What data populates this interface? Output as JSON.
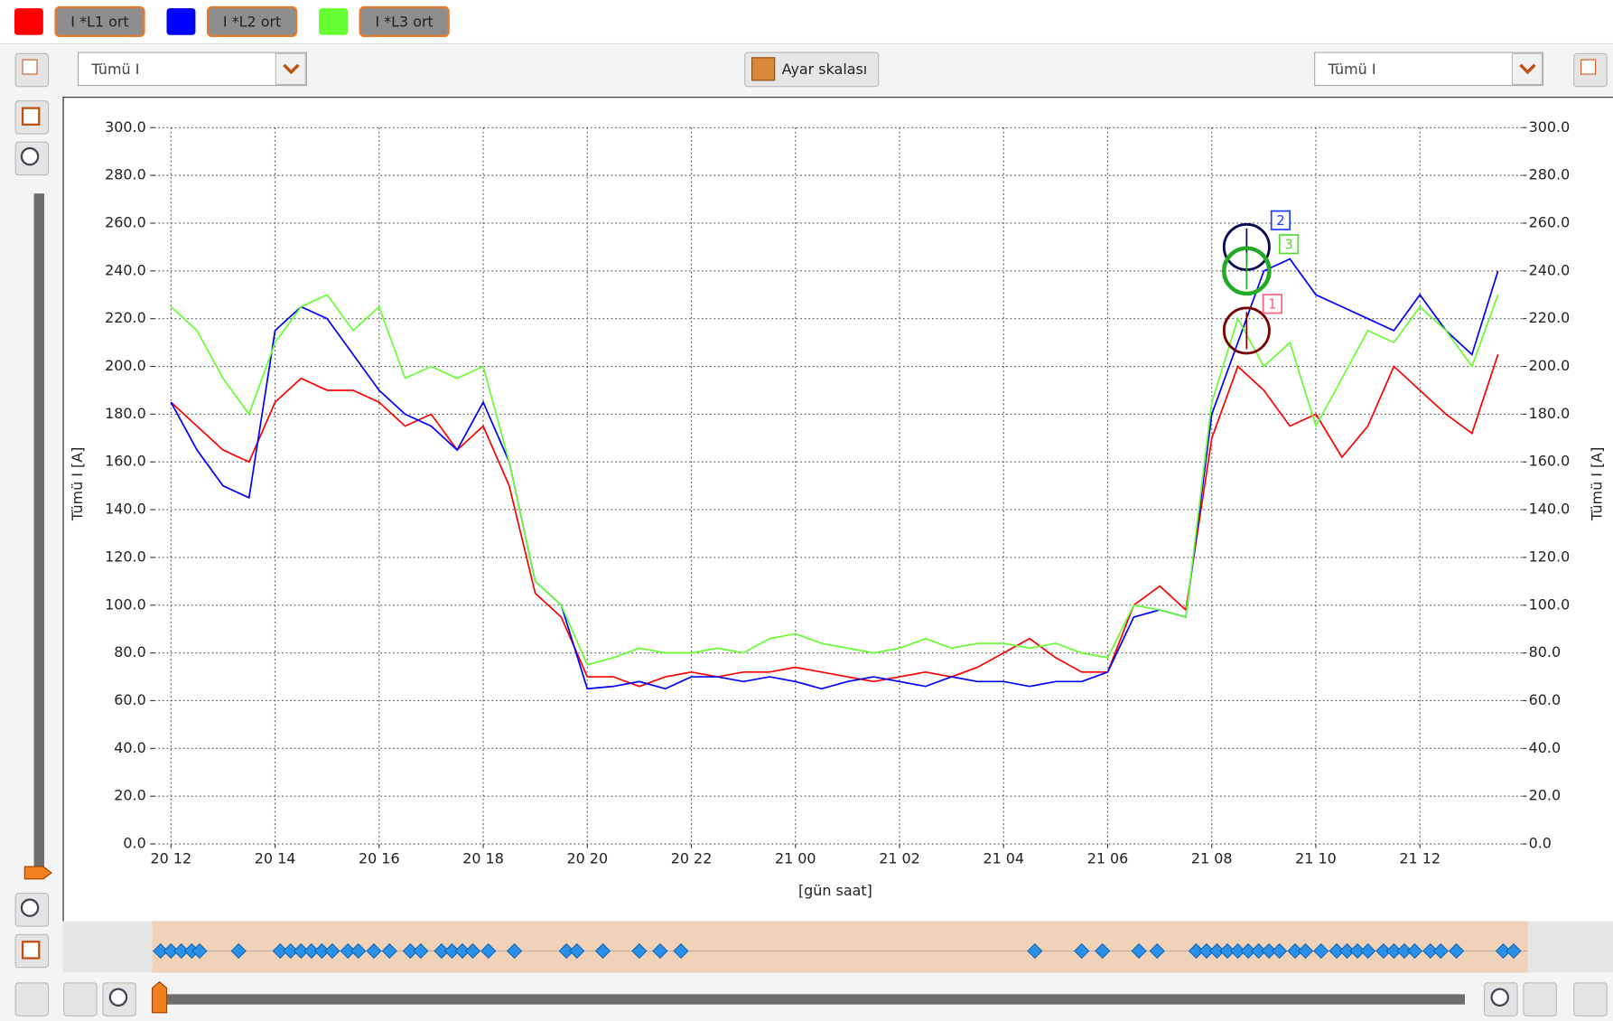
{
  "toolbar": {
    "dropdown_left": "Tümü I",
    "scale_button": "Ayar skalası",
    "dropdown_right": "Tümü I"
  },
  "chart_data": {
    "type": "line",
    "y_label": "Tümü I [A]",
    "y2_label": "Tümü I [A]",
    "x_label": "[gün saat]",
    "xlim": [
      -0.32,
      25.97
    ],
    "xticks": [
      {
        "value": 0,
        "label": "20 12"
      },
      {
        "value": 2,
        "label": "20 14"
      },
      {
        "value": 4,
        "label": "20 16"
      },
      {
        "value": 6,
        "label": "20 18"
      },
      {
        "value": 8,
        "label": "20 20"
      },
      {
        "value": 10,
        "label": "20 22"
      },
      {
        "value": 12,
        "label": "21 00"
      },
      {
        "value": 14,
        "label": "21 02"
      },
      {
        "value": 16,
        "label": "21 04"
      },
      {
        "value": 18,
        "label": "21 06"
      },
      {
        "value": 20,
        "label": "21 08"
      },
      {
        "value": 22,
        "label": "21 10"
      },
      {
        "value": 24,
        "label": "21 12"
      }
    ],
    "ylim": [
      0,
      300
    ],
    "yticks": [
      {
        "value": 0,
        "label": "0.0"
      },
      {
        "value": 20,
        "label": "20.0"
      },
      {
        "value": 40,
        "label": "40.0"
      },
      {
        "value": 60,
        "label": "60.0"
      },
      {
        "value": 80,
        "label": "80.0"
      },
      {
        "value": 100,
        "label": "100.0"
      },
      {
        "value": 120,
        "label": "120.0"
      },
      {
        "value": 140,
        "label": "140.0"
      },
      {
        "value": 160,
        "label": "160.0"
      },
      {
        "value": 180,
        "label": "180.0"
      },
      {
        "value": 200,
        "label": "200.0"
      },
      {
        "value": 220,
        "label": "220.0"
      },
      {
        "value": 240,
        "label": "240.0"
      },
      {
        "value": 260,
        "label": "260.0"
      },
      {
        "value": 280,
        "label": "280.0"
      },
      {
        "value": 300,
        "label": "300.0"
      }
    ],
    "grid": true,
    "x": [
      0,
      0.5,
      1,
      1.5,
      2,
      2.5,
      3,
      3.5,
      4,
      4.5,
      5,
      5.5,
      6,
      6.5,
      7,
      7.5,
      8,
      8.5,
      9,
      9.5,
      10,
      10.5,
      11,
      11.5,
      12,
      12.5,
      13,
      13.5,
      14,
      14.5,
      15,
      15.5,
      16,
      16.5,
      17,
      17.5,
      18,
      18.5,
      19,
      19.5,
      20,
      20.5,
      21,
      21.5,
      22,
      22.5,
      23,
      23.5,
      24,
      24.5,
      25,
      25.5
    ],
    "series": [
      {
        "name": "I *L1 ort",
        "color": "#ff0000",
        "values": [
          185,
          175,
          165,
          160,
          185,
          195,
          190,
          190,
          185,
          175,
          180,
          165,
          175,
          150,
          105,
          95,
          70,
          70,
          66,
          70,
          72,
          70,
          72,
          72,
          74,
          72,
          70,
          68,
          70,
          72,
          70,
          74,
          80,
          86,
          78,
          72,
          72,
          100,
          108,
          98,
          170,
          200,
          190,
          175,
          180,
          162,
          175,
          200,
          190,
          180,
          172,
          205
        ]
      },
      {
        "name": "I *L2 ort",
        "color": "#0000ff",
        "values": [
          185,
          165,
          150,
          145,
          215,
          225,
          220,
          205,
          190,
          180,
          175,
          165,
          185,
          160,
          110,
          100,
          65,
          66,
          68,
          65,
          70,
          70,
          68,
          70,
          68,
          65,
          68,
          70,
          68,
          66,
          70,
          68,
          68,
          66,
          68,
          68,
          72,
          95,
          98,
          95,
          180,
          210,
          240,
          245,
          230,
          225,
          220,
          215,
          230,
          215,
          205,
          240
        ]
      },
      {
        "name": "I *L3 ort",
        "color": "#66ff33",
        "values": [
          225,
          215,
          195,
          180,
          210,
          225,
          230,
          215,
          225,
          195,
          200,
          195,
          200,
          160,
          110,
          100,
          75,
          78,
          82,
          80,
          80,
          82,
          80,
          86,
          88,
          84,
          82,
          80,
          82,
          86,
          82,
          84,
          84,
          82,
          84,
          80,
          78,
          100,
          98,
          95,
          185,
          220,
          200,
          210,
          175,
          195,
          215,
          210,
          225,
          215,
          200,
          230
        ]
      }
    ],
    "cursors": [
      {
        "label": "1",
        "color": "#7a0000",
        "box_color": "#ff5f7f",
        "x": 20.67,
        "value": 215
      },
      {
        "label": "2",
        "color": "#0a0a5a",
        "box_color": "#1e3cff",
        "x": 20.67,
        "value": 250
      },
      {
        "label": "3",
        "color": "#22aa22",
        "box_color": "#55dd33",
        "x": 20.67,
        "value": 240
      }
    ],
    "events": [
      -0.2,
      0,
      0.2,
      0.4,
      0.55,
      1.3,
      2.1,
      2.3,
      2.5,
      2.7,
      2.9,
      3.1,
      3.4,
      3.6,
      3.9,
      4.2,
      4.6,
      4.8,
      5.2,
      5.4,
      5.6,
      5.8,
      6.1,
      6.6,
      7.6,
      7.8,
      8.3,
      9.0,
      9.4,
      9.8,
      16.6,
      17.5,
      17.9,
      18.6,
      18.95,
      19.7,
      19.9,
      20.1,
      20.3,
      20.5,
      20.7,
      20.9,
      21.1,
      21.3,
      21.6,
      21.8,
      22.1,
      22.4,
      22.6,
      22.8,
      23.0,
      23.3,
      23.5,
      23.7,
      23.9,
      24.2,
      24.4,
      24.7,
      25.6,
      25.8
    ]
  }
}
